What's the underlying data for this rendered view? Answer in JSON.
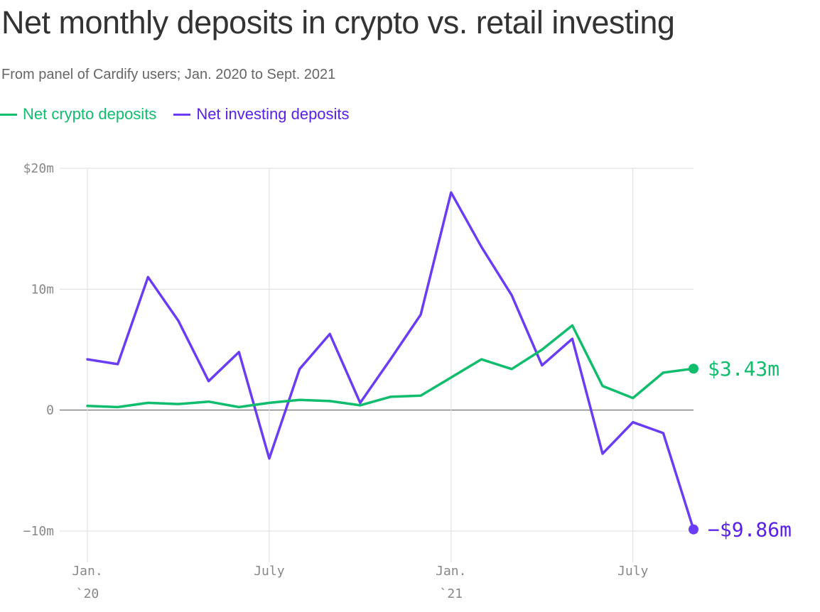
{
  "title": "Net monthly deposits in crypto vs. retail investing",
  "subtitle": "From panel of Cardify users; Jan. 2020 to Sept. 2021",
  "legend": {
    "crypto": "Net crypto deposits",
    "investing": "Net investing deposits"
  },
  "colors": {
    "crypto": "#0fbd6d",
    "investing": "#6a3cf5",
    "investing_text": "#5a1fe8",
    "grid": "#dddddd",
    "zero": "#555555",
    "title": "#333333"
  },
  "chart_data": {
    "type": "line",
    "title": "Net monthly deposits in crypto vs. retail investing",
    "subtitle": "From panel of Cardify users; Jan. 2020 to Sept. 2021",
    "xlabel": "",
    "ylabel": "",
    "ylim": [
      -10,
      20
    ],
    "yticks": [
      {
        "value": 20,
        "label": "$20m"
      },
      {
        "value": 10,
        "label": "10m"
      },
      {
        "value": 0,
        "label": "0"
      },
      {
        "value": -10,
        "label": "−10m"
      }
    ],
    "x": [
      "2020-01",
      "2020-02",
      "2020-03",
      "2020-04",
      "2020-05",
      "2020-06",
      "2020-07",
      "2020-08",
      "2020-09",
      "2020-10",
      "2020-11",
      "2020-12",
      "2021-01",
      "2021-02",
      "2021-03",
      "2021-04",
      "2021-05",
      "2021-06",
      "2021-07",
      "2021-08",
      "2021-09"
    ],
    "xticks": [
      {
        "index": 0,
        "line1": "Jan.",
        "line2": "`20"
      },
      {
        "index": 6,
        "line1": "July",
        "line2": ""
      },
      {
        "index": 12,
        "line1": "Jan.",
        "line2": "`21"
      },
      {
        "index": 18,
        "line1": "July",
        "line2": ""
      }
    ],
    "series": [
      {
        "name": "Net crypto deposits",
        "key": "crypto",
        "values": [
          0.35,
          0.25,
          0.6,
          0.5,
          0.7,
          0.25,
          0.6,
          0.85,
          0.75,
          0.4,
          1.1,
          1.2,
          2.7,
          4.2,
          3.4,
          5.0,
          7.0,
          2.0,
          1.0,
          3.1,
          3.43
        ],
        "end_label": "$3.43m"
      },
      {
        "name": "Net investing deposits",
        "key": "investing",
        "values": [
          4.2,
          3.8,
          11.0,
          7.4,
          2.4,
          4.8,
          -4.0,
          3.4,
          6.3,
          0.6,
          4.2,
          7.9,
          18.0,
          13.5,
          9.5,
          3.7,
          5.9,
          -3.6,
          -1.0,
          -1.9,
          -9.86
        ],
        "end_label": "−$9.86m"
      }
    ]
  }
}
